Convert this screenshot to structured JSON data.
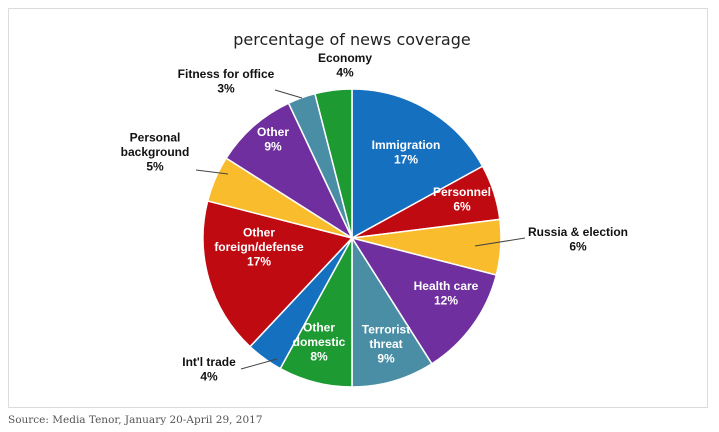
{
  "chart_data": {
    "type": "pie",
    "title": "percentage of news coverage",
    "slices": [
      {
        "label": "Immigration",
        "value": 17,
        "value_label": "17%",
        "color": "#1670c0",
        "label_pos": "inside"
      },
      {
        "label": "Personnel",
        "value": 6,
        "value_label": "6%",
        "color": "#c00a12",
        "label_pos": "inside"
      },
      {
        "label": "Russia & election",
        "value": 6,
        "value_label": "6%",
        "color": "#f9bc2c",
        "label_pos": "outside"
      },
      {
        "label": "Health care",
        "value": 12,
        "value_label": "12%",
        "color": "#6f2f9f",
        "label_pos": "inside"
      },
      {
        "label": "Terrorist threat",
        "value": 9,
        "value_label": "9%",
        "color": "#4a8ea6",
        "label_pos": "inside"
      },
      {
        "label": "Other domestic",
        "value": 8,
        "value_label": "8%",
        "color": "#1e9a32",
        "label_pos": "inside"
      },
      {
        "label": "Int'l trade",
        "value": 4,
        "value_label": "4%",
        "color": "#1670c0",
        "label_pos": "outside"
      },
      {
        "label": "Other foreign/defense",
        "value": 17,
        "value_label": "17%",
        "color": "#c00a12",
        "label_pos": "inside"
      },
      {
        "label": "Personal background",
        "value": 5,
        "value_label": "5%",
        "color": "#f9bc2c",
        "label_pos": "outside"
      },
      {
        "label": "Other",
        "value": 9,
        "value_label": "9%",
        "color": "#6f2f9f",
        "label_pos": "inside"
      },
      {
        "label": "Fitness for office",
        "value": 3,
        "value_label": "3%",
        "color": "#4a8ea6",
        "label_pos": "outside"
      },
      {
        "label": "Economy",
        "value": 4,
        "value_label": "4%",
        "color": "#1e9a32",
        "label_pos": "outside"
      }
    ]
  },
  "source": "Source: Media Tenor, January 20-April 29, 2017"
}
